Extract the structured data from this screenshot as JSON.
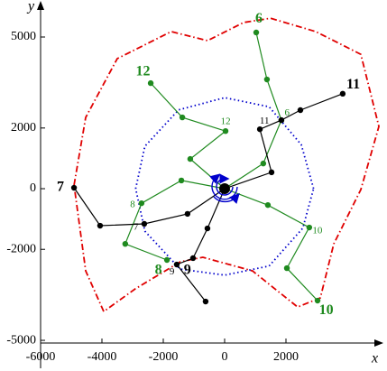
{
  "chart_data": {
    "type": "line",
    "xlabel": "x",
    "ylabel": "y",
    "xlim": [
      -6000,
      5000
    ],
    "ylim": [
      -5100,
      6000
    ],
    "xticks": [
      -6000,
      -4000,
      -2000,
      0,
      2000
    ],
    "yticks": [
      5000,
      2000,
      0,
      -2000,
      -5000
    ],
    "series": [
      {
        "color": "#e00000",
        "style": "dashdot",
        "markers": false,
        "x": [
          -4910,
          -4530,
          -3500,
          -1740,
          -560,
          620,
          1500,
          2970,
          4440,
          5030,
          4440,
          3560,
          3120,
          2380,
          910,
          -710,
          -1440,
          -2910,
          -3940,
          -4530,
          -4910
        ],
        "y": [
          120,
          2350,
          4290,
          5180,
          4880,
          5480,
          5620,
          5180,
          4430,
          2050,
          -30,
          -1820,
          -3600,
          -3900,
          -2710,
          -2260,
          -2410,
          -3300,
          -4050,
          -2710,
          120
        ]
      },
      {
        "color": "#0000cc",
        "style": "dotted",
        "markers": false,
        "x": [
          2900,
          2500,
          1450,
          0,
          -1500,
          -2600,
          -2900,
          -2600,
          -1450,
          0,
          1450,
          2550,
          2900
        ],
        "y": [
          0,
          1450,
          2700,
          3000,
          2600,
          1400,
          0,
          -1400,
          -2650,
          -2850,
          -2550,
          -1300,
          0
        ]
      },
      {
        "color": "#1f8a1f",
        "style": "solid",
        "markers": true,
        "x": [
          0,
          1260,
          1850,
          1380,
          1030
        ],
        "y": [
          0,
          830,
          2260,
          3600,
          5150
        ],
        "small_labels": [
          null,
          null,
          "6",
          null,
          null
        ],
        "labels": [
          null,
          null,
          null,
          null,
          "6"
        ]
      },
      {
        "color": "#1f8a1f",
        "style": "solid",
        "markers": true,
        "x": [
          0,
          -1120,
          30,
          -1380,
          -2410
        ],
        "y": [
          0,
          980,
          1900,
          2350,
          3480
        ],
        "small_labels": [
          null,
          null,
          "12",
          null,
          null
        ],
        "labels": [
          null,
          null,
          null,
          null,
          "12"
        ]
      },
      {
        "color": "#1f8a1f",
        "style": "solid",
        "markers": true,
        "x": [
          0,
          -1410,
          -2710,
          -3240,
          -1880
        ],
        "y": [
          0,
          270,
          -480,
          -1820,
          -2350
        ],
        "small_labels": [
          null,
          null,
          "8",
          null,
          null
        ],
        "labels": [
          null,
          null,
          null,
          null,
          "8"
        ]
      },
      {
        "color": "#1f8a1f",
        "style": "solid",
        "markers": true,
        "x": [
          0,
          1410,
          2760,
          2030,
          3030
        ],
        "y": [
          0,
          -540,
          -1280,
          -2620,
          -3690
        ],
        "small_labels": [
          null,
          null,
          "10",
          null,
          null
        ],
        "labels": [
          null,
          null,
          null,
          null,
          "10"
        ]
      },
      {
        "color": "#000000",
        "style": "solid",
        "markers": true,
        "x": [
          0,
          -1210,
          -2620,
          -4060,
          -4910
        ],
        "y": [
          0,
          -830,
          -1160,
          -1220,
          30
        ],
        "small_labels": [
          null,
          null,
          "7",
          null,
          null
        ],
        "labels": [
          null,
          null,
          null,
          null,
          "7"
        ]
      },
      {
        "color": "#000000",
        "style": "solid",
        "markers": true,
        "x": [
          0,
          1530,
          1150,
          1850,
          2470,
          3850
        ],
        "y": [
          0,
          540,
          1960,
          2260,
          2590,
          3130
        ],
        "small_labels": [
          null,
          null,
          "11",
          null,
          null,
          null
        ],
        "labels": [
          null,
          null,
          null,
          null,
          null,
          "11"
        ]
      },
      {
        "color": "#000000",
        "style": "solid",
        "markers": true,
        "x": [
          0,
          -560,
          -1030,
          -1560,
          -620
        ],
        "y": [
          0,
          -1310,
          -2290,
          -2500,
          -3720
        ],
        "small_labels": [
          null,
          null,
          null,
          "9",
          null
        ],
        "labels": [
          null,
          null,
          "9",
          null,
          null
        ]
      }
    ]
  }
}
